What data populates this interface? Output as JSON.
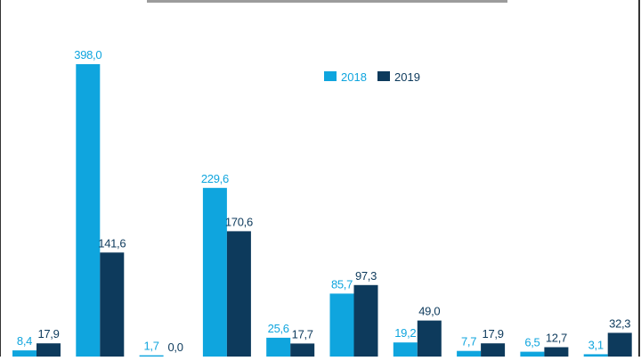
{
  "chart_data": {
    "type": "bar",
    "title": "",
    "xlabel": "",
    "ylabel": "",
    "ylim": [
      0,
      440
    ],
    "categories": [
      "",
      "",
      "",
      "",
      "",
      "",
      "",
      "",
      "",
      ""
    ],
    "series": [
      {
        "name": "2018",
        "color": "#0fa5de",
        "values": [
          8.4,
          398.0,
          1.7,
          229.6,
          25.6,
          85.7,
          19.2,
          7.7,
          6.5,
          3.1
        ],
        "labels": [
          "8,4",
          "398,0",
          "1,7",
          "229,6",
          "25,6",
          "85,7",
          "19,2",
          "7,7",
          "6,5",
          "3,1"
        ]
      },
      {
        "name": "2019",
        "color": "#0d3a5c",
        "values": [
          17.9,
          141.6,
          0.0,
          170.6,
          17.7,
          97.3,
          49.0,
          17.9,
          12.7,
          32.3
        ],
        "labels": [
          "17,9",
          "141,6",
          "0,0",
          "170,6",
          "17,7",
          "97,3",
          "49,0",
          "17,9",
          "12,7",
          "32,3"
        ]
      }
    ],
    "legend": {
      "placement": "top-right",
      "items": [
        {
          "name": "2018",
          "color": "#0fa5de"
        },
        {
          "name": "2019",
          "color": "#0d3a5c"
        }
      ]
    },
    "grid": false
  }
}
